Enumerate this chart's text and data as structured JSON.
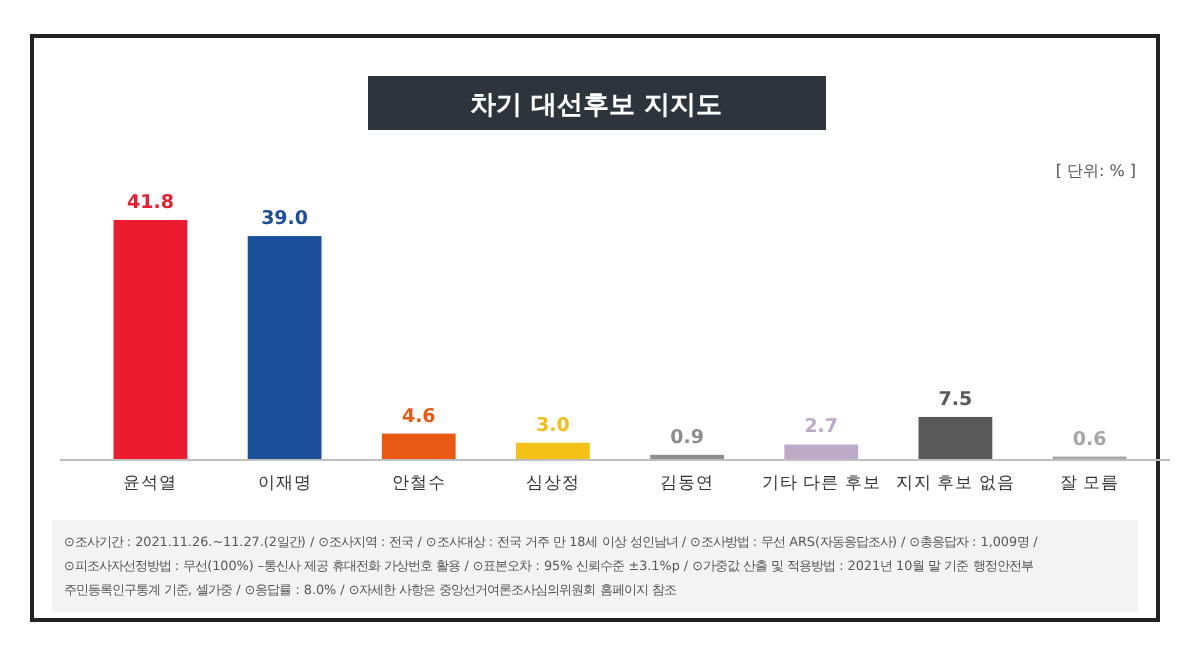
{
  "chart_data": {
    "type": "bar",
    "title": "차기 대선후보 지지도",
    "categories": [
      "윤석열",
      "이재명",
      "안철수",
      "심상정",
      "김동연",
      "기타 다른 후보",
      "지지 후보 없음",
      "잘 모름"
    ],
    "values": [
      41.8,
      39.0,
      4.6,
      3.0,
      0.9,
      2.7,
      7.5,
      0.6
    ],
    "colors": [
      "#ec1c2e",
      "#1b4f9c",
      "#e85a14",
      "#f5c116",
      "#8e8e8e",
      "#bcaac8",
      "#595959",
      "#a6a6a6"
    ],
    "value_labels": [
      "41.8",
      "39.0",
      "4.6",
      "3.0",
      "0.9",
      "2.7",
      "7.5",
      "0.6"
    ],
    "annotations": [
      "[ 단위: % ]",
      "⊙조사기간 : 2021.11.26.~11.27.(2일간) / ⊙조사지역 : 전국 / ⊙조사대상 : 전국 거주 만 18세 이상 성인남녀 / ⊙조사방법 : 무선 ARS(자동응답조사) / ⊙총응답자 : 1,009명 /",
      "⊙피조사자선정방법 : 무선(100%) –통신사 제공 휴대전화 가상번호 활용 / ⊙표본오차 : 95% 신뢰수준 ±3.1%p / ⊙가중값 산출 및 적용방법 : 2021년 10월 말 기준 행정안전부",
      "주민등록인구통계 기준, 셀가중 / ⊙응답률 : 8.0% / ⊙자세한 사항은 중앙선거여론조사심의위원회 홈페이지 참조"
    ]
  }
}
